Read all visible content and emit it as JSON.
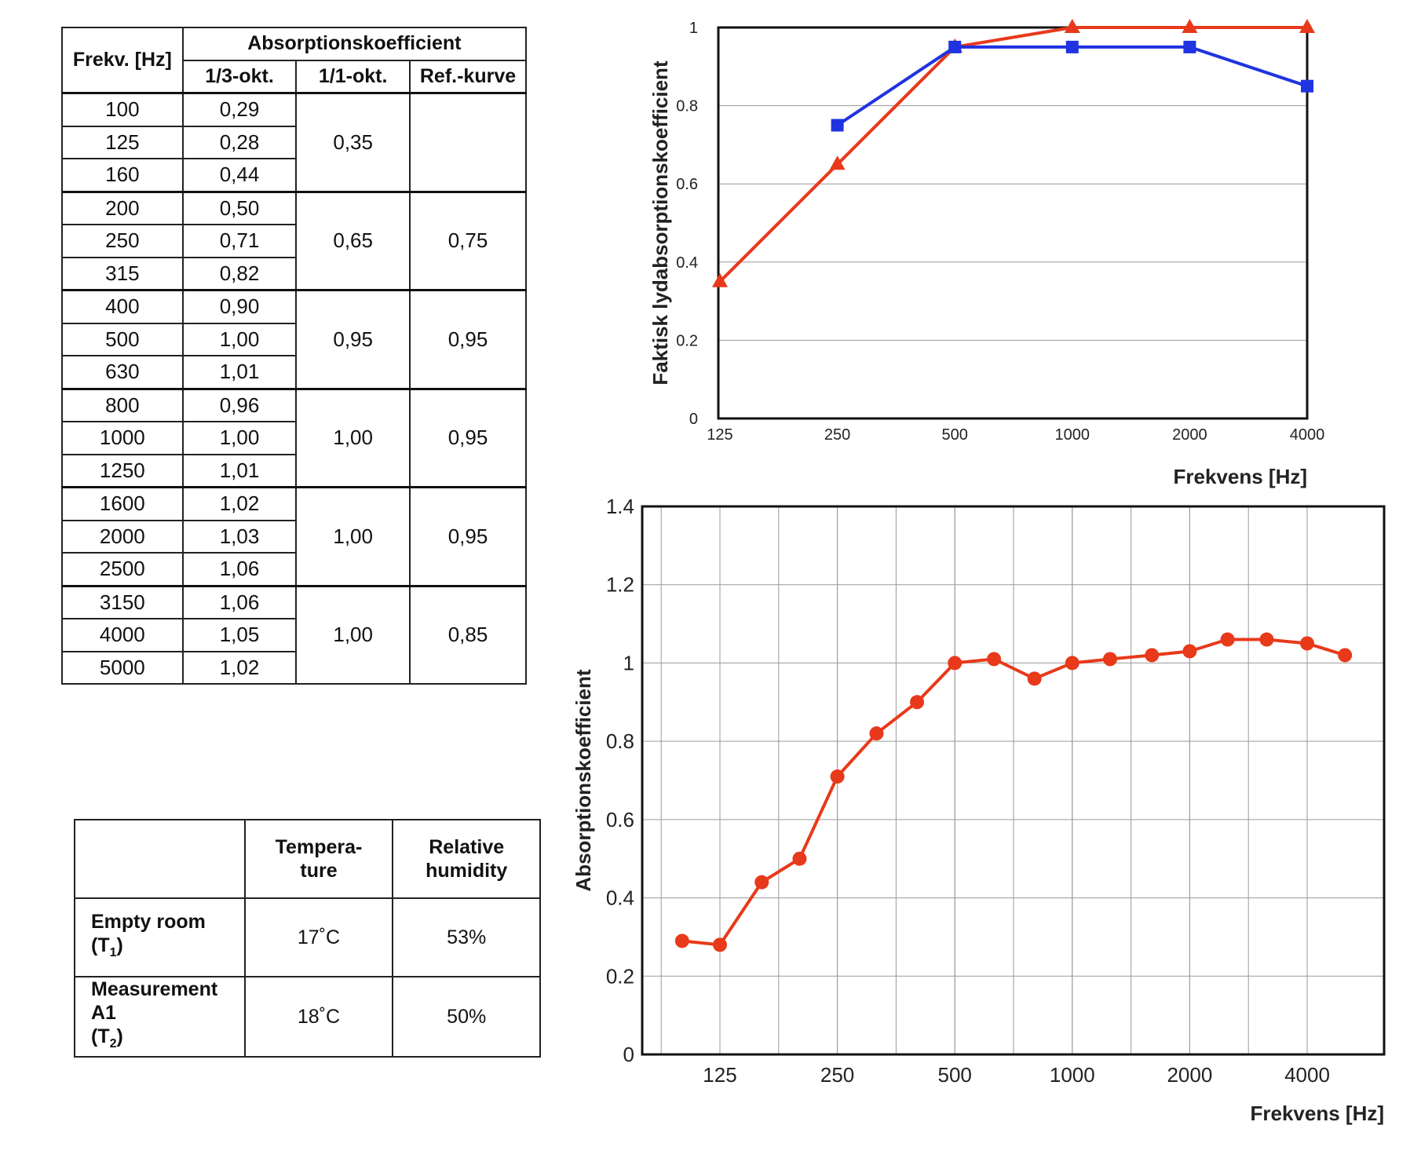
{
  "absorption_table": {
    "header": {
      "freq": "Frekv. [Hz]",
      "group": "Absorptionskoefficient",
      "third": "1/3-okt.",
      "octave": "1/1-okt.",
      "ref": "Ref.-kurve"
    },
    "groups": [
      {
        "rows": [
          [
            "100",
            "0,29"
          ],
          [
            "125",
            "0,28"
          ],
          [
            "160",
            "0,44"
          ]
        ],
        "octave": "0,35",
        "ref": ""
      },
      {
        "rows": [
          [
            "200",
            "0,50"
          ],
          [
            "250",
            "0,71"
          ],
          [
            "315",
            "0,82"
          ]
        ],
        "octave": "0,65",
        "ref": "0,75"
      },
      {
        "rows": [
          [
            "400",
            "0,90"
          ],
          [
            "500",
            "1,00"
          ],
          [
            "630",
            "1,01"
          ]
        ],
        "octave": "0,95",
        "ref": "0,95"
      },
      {
        "rows": [
          [
            "800",
            "0,96"
          ],
          [
            "1000",
            "1,00"
          ],
          [
            "1250",
            "1,01"
          ]
        ],
        "octave": "1,00",
        "ref": "0,95"
      },
      {
        "rows": [
          [
            "1600",
            "1,02"
          ],
          [
            "2000",
            "1,03"
          ],
          [
            "2500",
            "1,06"
          ]
        ],
        "octave": "1,00",
        "ref": "0,95"
      },
      {
        "rows": [
          [
            "3150",
            "1,06"
          ],
          [
            "4000",
            "1,05"
          ],
          [
            "5000",
            "1,02"
          ]
        ],
        "octave": "1,00",
        "ref": "0,85"
      }
    ]
  },
  "conditions_table": {
    "header": {
      "empty": "",
      "temp": "Tempera-\nture",
      "humidity": "Relative\nhumidity"
    },
    "rows": [
      {
        "label_main": "Empty room",
        "label_sub": "(T",
        "label_subscript": "1",
        "label_close": ")",
        "temp": "17˚C",
        "humidity": "53%"
      },
      {
        "label_main": "Measurement",
        "label_line2": "A1",
        "label_sub": "(T",
        "label_subscript": "2",
        "label_close": ")",
        "temp": "18˚C",
        "humidity": "50%"
      }
    ]
  },
  "chart_data": [
    {
      "type": "line",
      "ylabel": "Faktisk lydabsorptionskoefficient",
      "xlabel": "Frekvens [Hz]",
      "x_scale": "log",
      "categories": [
        "125",
        "250",
        "500",
        "1000",
        "2000",
        "4000"
      ],
      "ylim": [
        0,
        1
      ],
      "yticks": [
        "0",
        "0.2",
        "0.4",
        "0.6",
        "0.8",
        "1"
      ],
      "grid": true,
      "series": [
        {
          "x": [
            125,
            250,
            500,
            1000,
            2000,
            4000
          ],
          "values": [
            0.35,
            0.65,
            0.95,
            1.0,
            1.0,
            1.0
          ],
          "color": "#e8391a",
          "marker": "triangle"
        },
        {
          "x": [
            250,
            500,
            1000,
            2000,
            4000
          ],
          "values": [
            0.75,
            0.95,
            0.95,
            0.95,
            0.85
          ],
          "color": "#1f33e0",
          "marker": "square"
        }
      ]
    },
    {
      "type": "line",
      "ylabel": "Absorptionskoefficient",
      "xlabel": "Frekvens [Hz]",
      "x_scale": "log",
      "categories": [
        "125",
        "250",
        "500",
        "1000",
        "2000",
        "4000"
      ],
      "ylim": [
        0,
        1.4
      ],
      "yticks": [
        "0",
        "0.2",
        "0.4",
        "0.6",
        "0.8",
        "1",
        "1.2",
        "1.4"
      ],
      "grid": true,
      "series": [
        {
          "x": [
            100,
            125,
            160,
            200,
            250,
            315,
            400,
            500,
            630,
            800,
            1000,
            1250,
            1600,
            2000,
            2500,
            3150,
            4000,
            5000
          ],
          "values": [
            0.29,
            0.28,
            0.44,
            0.5,
            0.71,
            0.82,
            0.9,
            1.0,
            1.01,
            0.96,
            1.0,
            1.01,
            1.02,
            1.03,
            1.06,
            1.06,
            1.05,
            1.02
          ],
          "color": "#e8391a",
          "marker": "circle"
        }
      ]
    }
  ]
}
